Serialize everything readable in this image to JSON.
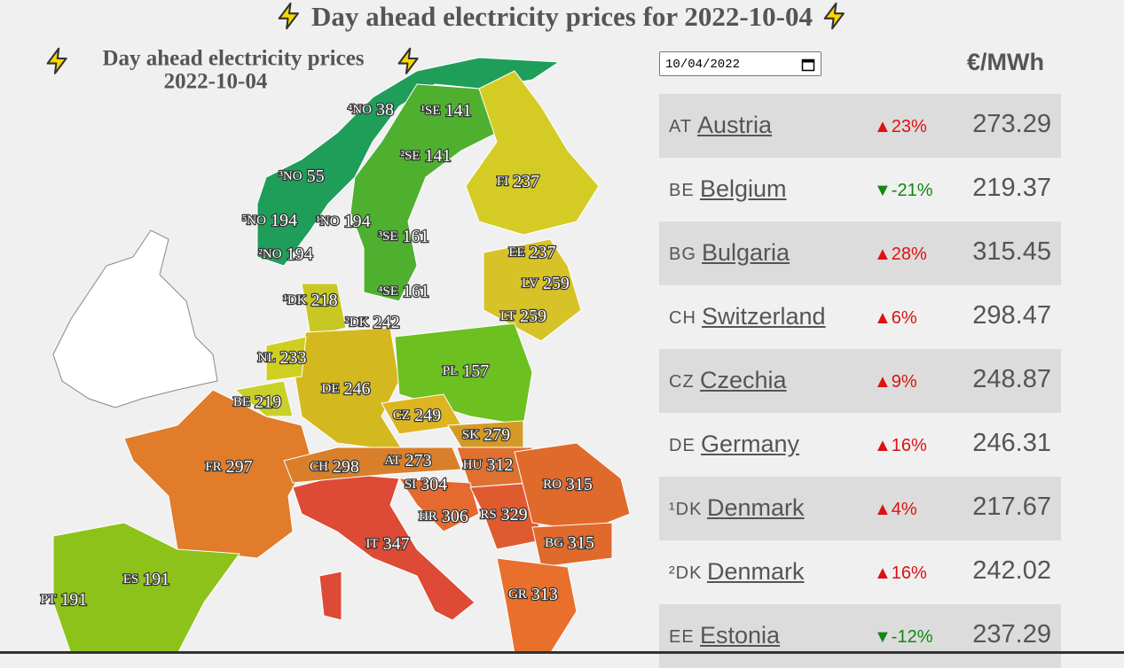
{
  "header": {
    "title": "Day ahead electricity prices for 2022-10-04"
  },
  "map": {
    "title": "Day ahead electricity prices",
    "date": "2022-10-04",
    "labels": [
      {
        "code": "⁴NO",
        "price": "38"
      },
      {
        "code": "¹SE",
        "price": "141"
      },
      {
        "code": "²SE",
        "price": "141"
      },
      {
        "code": "³NO",
        "price": "55"
      },
      {
        "code": "FI",
        "price": "237"
      },
      {
        "code": "⁵NO",
        "price": "194"
      },
      {
        "code": "¹NO",
        "price": "194"
      },
      {
        "code": "³SE",
        "price": "161"
      },
      {
        "code": "²NO",
        "price": "194"
      },
      {
        "code": "EE",
        "price": "237"
      },
      {
        "code": "LV",
        "price": "259"
      },
      {
        "code": "⁴SE",
        "price": "161"
      },
      {
        "code": "¹DK",
        "price": "218"
      },
      {
        "code": "²DK",
        "price": "242"
      },
      {
        "code": "LT",
        "price": "259"
      },
      {
        "code": "NL",
        "price": "233"
      },
      {
        "code": "PL",
        "price": "157"
      },
      {
        "code": "DE",
        "price": "246"
      },
      {
        "code": "BE",
        "price": "219"
      },
      {
        "code": "CZ",
        "price": "249"
      },
      {
        "code": "SK",
        "price": "279"
      },
      {
        "code": "FR",
        "price": "297"
      },
      {
        "code": "CH",
        "price": "298"
      },
      {
        "code": "AT",
        "price": "273"
      },
      {
        "code": "HU",
        "price": "312"
      },
      {
        "code": "RO",
        "price": "315"
      },
      {
        "code": "SI",
        "price": "304"
      },
      {
        "code": "HR",
        "price": "306"
      },
      {
        "code": "RS",
        "price": "329"
      },
      {
        "code": "IT",
        "price": "347"
      },
      {
        "code": "BG",
        "price": "315"
      },
      {
        "code": "ES",
        "price": "191"
      },
      {
        "code": "PT",
        "price": "191"
      },
      {
        "code": "GR",
        "price": "313"
      }
    ]
  },
  "controls": {
    "date_input": "10/04/2022",
    "unit": "€/MWh"
  },
  "table": {
    "rows": [
      {
        "code": "AT",
        "name": "Austria",
        "change": "▲23%",
        "price": "273.29"
      },
      {
        "code": "BE",
        "name": "Belgium",
        "change": "▼-21%",
        "price": "219.37"
      },
      {
        "code": "BG",
        "name": "Bulgaria",
        "change": "▲28%",
        "price": "315.45"
      },
      {
        "code": "CH",
        "name": "Switzerland",
        "change": "▲6%",
        "price": "298.47"
      },
      {
        "code": "CZ",
        "name": "Czechia",
        "change": "▲9%",
        "price": "248.87"
      },
      {
        "code": "DE",
        "name": "Germany",
        "change": "▲16%",
        "price": "246.31"
      },
      {
        "code": "¹DK",
        "name": "Denmark",
        "change": "▲4%",
        "price": "217.67"
      },
      {
        "code": "²DK",
        "name": "Denmark",
        "change": "▲16%",
        "price": "242.02"
      },
      {
        "code": "EE",
        "name": "Estonia",
        "change": "▼-12%",
        "price": "237.29"
      }
    ]
  }
}
